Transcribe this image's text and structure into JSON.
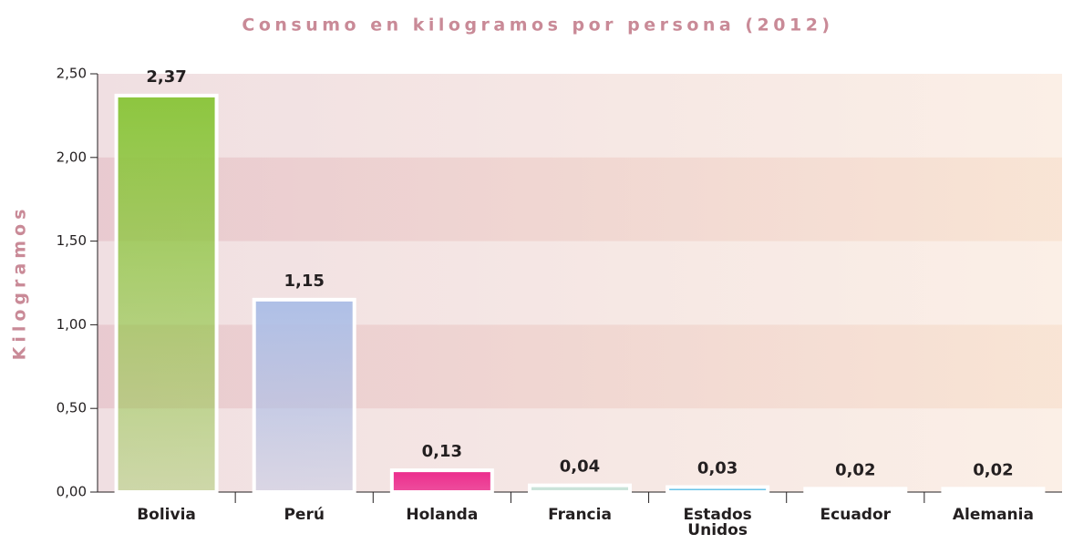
{
  "chart_data": {
    "type": "bar",
    "title": "Consumo en kilogramos por persona (2012)",
    "ylabel": "Kilogramos",
    "categories": [
      "Bolivia",
      "Perú",
      "Holanda",
      "Francia",
      "Estados Unidos",
      "Ecuador",
      "Alemania"
    ],
    "values": [
      2.37,
      1.15,
      0.13,
      0.04,
      0.03,
      0.02,
      0.02
    ],
    "value_labels": [
      "2,37",
      "1,15",
      "0,13",
      "0,04",
      "0,03",
      "0,02",
      "0,02"
    ],
    "colors": [
      "#8dc63f",
      "#aebfe6",
      "#ec2a8c",
      "#c6e3d8",
      "#5bc0e8",
      "#f7d46a",
      "#6cb56a"
    ],
    "ylim": [
      0,
      2.5
    ],
    "yticks": [
      {
        "value": 0,
        "label": "0,00"
      },
      {
        "value": 0.5,
        "label": "0,50"
      },
      {
        "value": 1,
        "label": "1,00"
      },
      {
        "value": 1.5,
        "label": "1,50"
      },
      {
        "value": 2,
        "label": "2,00"
      },
      {
        "value": 2.5,
        "label": "2,50"
      }
    ],
    "grid": "bands"
  }
}
